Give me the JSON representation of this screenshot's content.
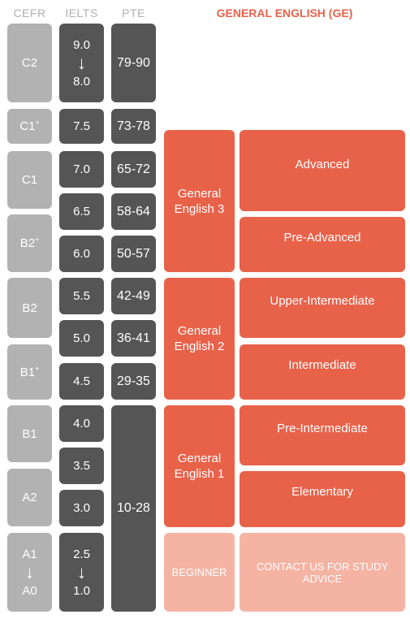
{
  "headers": {
    "cefr": "CEFR",
    "ielts": "IELTS",
    "pte": "PTE",
    "ge": "GENERAL ENGLISH (GE)"
  },
  "cefr": {
    "c2": "C2",
    "c1plus": {
      "base": "C1",
      "sup": "+"
    },
    "c1": "C1",
    "b2plus": {
      "base": "B2",
      "sup": "+"
    },
    "b2": "B2",
    "b1plus": {
      "base": "B1",
      "sup": "+"
    },
    "b1": "B1",
    "a2": "A2",
    "a1_top": "A1",
    "a1_bottom": "A0"
  },
  "ielts": {
    "top_high": "9.0",
    "top_low": "8.0",
    "s75": "7.5",
    "s70": "7.0",
    "s65": "6.5",
    "s60": "6.0",
    "s55": "5.5",
    "s50": "5.0",
    "s45": "4.5",
    "s40": "4.0",
    "s35": "3.5",
    "s30": "3.0",
    "bottom_high": "2.5",
    "bottom_low": "1.0"
  },
  "pte": {
    "r1": "79-90",
    "r2": "73-78",
    "r3": "65-72",
    "r4": "58-64",
    "r5": "50-57",
    "r6": "42-49",
    "r7": "36-41",
    "r8": "29-35",
    "r9": "10-28"
  },
  "ge_courses": {
    "ge3_line1": "General",
    "ge3_line2": "English 3",
    "ge2_line1": "General",
    "ge2_line2": "English 2",
    "ge1_line1": "General",
    "ge1_line2": "English 1",
    "beginner": "BEGINNER"
  },
  "levels": {
    "advanced": "Advanced",
    "pre_advanced": "Pre-Advanced",
    "upper_intermediate": "Upper-Intermediate",
    "intermediate": "Intermediate",
    "pre_intermediate": "Pre-Intermediate",
    "elementary": "Elementary",
    "contact": "CONTACT US FOR STUDY ADVICE"
  },
  "colors": {
    "cefr": "#b2b2b2",
    "dark": "#555555",
    "accent": "#e8624a",
    "light_accent": "#f5b3a3"
  }
}
